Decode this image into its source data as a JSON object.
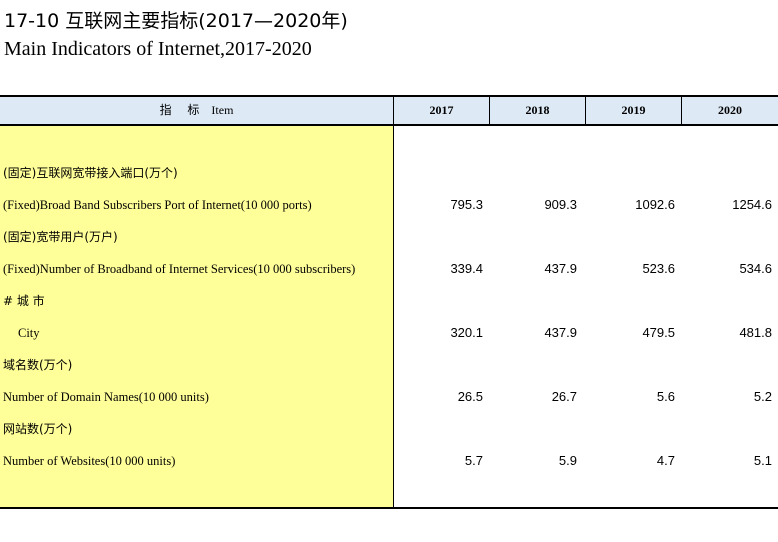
{
  "title_cn": "17-10   互联网主要指标(2017—2020年)",
  "title_en": "Main Indicators of Internet,2017-2020",
  "header": {
    "item_cn": "指 标",
    "item_en": "Item",
    "years": [
      "2017",
      "2018",
      "2019",
      "2020"
    ]
  },
  "rows": [
    {
      "label": "(固定)互联网宽带接入端口(万个)",
      "lang": "cn",
      "values": [
        "",
        "",
        "",
        ""
      ]
    },
    {
      "label": "(Fixed)Broad Band Subscribers Port of Internet(10 000 ports)",
      "lang": "en",
      "values": [
        "795.3",
        "909.3",
        "1092.6",
        "1254.6"
      ]
    },
    {
      "label": "(固定)宽带用户(万户)",
      "lang": "cn",
      "values": [
        "",
        "",
        "",
        ""
      ]
    },
    {
      "label": "(Fixed)Number of Broadband of Internet Services(10 000 subscribers)",
      "lang": "en",
      "values": [
        "339.4",
        "437.9",
        "523.6",
        "534.6"
      ]
    },
    {
      "label": "# 城 市",
      "lang": "cn",
      "values": [
        "",
        "",
        "",
        ""
      ]
    },
    {
      "label": "City",
      "lang": "en",
      "indent": true,
      "values": [
        "320.1",
        "437.9",
        "479.5",
        "481.8"
      ]
    },
    {
      "label": "域名数(万个)",
      "lang": "cn",
      "values": [
        "",
        "",
        "",
        ""
      ]
    },
    {
      "label": "Number of Domain Names(10 000 units)",
      "lang": "en",
      "values": [
        "26.5",
        "26.7",
        "5.6",
        "5.2"
      ]
    },
    {
      "label": "网站数(万个)",
      "lang": "cn",
      "values": [
        "",
        "",
        "",
        ""
      ]
    },
    {
      "label": "Number of Websites(10 000 units)",
      "lang": "en",
      "values": [
        "5.7",
        "5.9",
        "4.7",
        "5.1"
      ]
    }
  ]
}
